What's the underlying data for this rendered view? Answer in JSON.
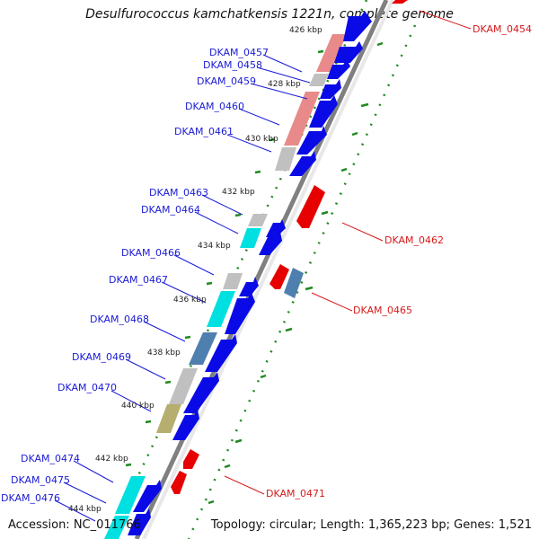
{
  "title": "Desulfurococcus kamchatkensis 1221n, complete genome",
  "footer": {
    "accession": "Accession: NC_011766",
    "topology": "Topology: circular; Length: 1,365,223 bp; Genes: 1,521"
  },
  "ticks": [
    "426 kbp",
    "428 kbp",
    "430 kbp",
    "432 kbp",
    "434 kbp",
    "436 kbp",
    "438 kbp",
    "440 kbp",
    "442 kbp",
    "444 kbp"
  ],
  "left_labels": [
    "DKAM_0457",
    "DKAM_0458",
    "DKAM_0459",
    "DKAM_0460",
    "DKAM_0461",
    "DKAM_0463",
    "DKAM_0464",
    "DKAM_0466",
    "DKAM_0467",
    "DKAM_0468",
    "DKAM_0469",
    "DKAM_0470",
    "DKAM_0474",
    "DKAM_0475",
    "DKAM_0476"
  ],
  "right_labels": [
    "DKAM_0454",
    "DKAM_0462",
    "DKAM_0465",
    "DKAM_0471"
  ],
  "colors": {
    "forward": "#0a0ae6",
    "reverse": "#e60000",
    "backbone": "#808080",
    "gc_skew": "#1f8a1f",
    "cog_pink": "#e88a8a",
    "cog_gray": "#c0c0c0",
    "cog_cyan": "#00e0e0",
    "cog_steel": "#4f7fae",
    "cog_olive": "#b5ae6e"
  }
}
